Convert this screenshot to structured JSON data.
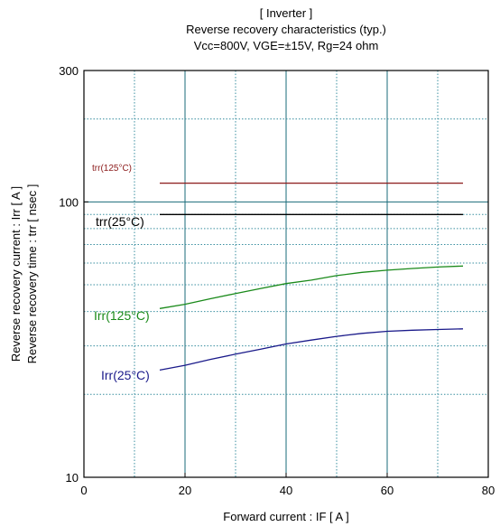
{
  "chart_data": {
    "type": "line",
    "title_lines": [
      "[ Inverter ]",
      "Reverse recovery characteristics  (typ.)",
      "Vcc=800V, VGE=±15V, Rg=24 ohm"
    ],
    "xlabel": "Forward current  :  IF  [ A ]",
    "ylabel_lines": [
      "Reverse recovery current  :  Irr  [ A ]",
      "Reverse recovery time  :  trr  [ nsec ]"
    ],
    "xlim": [
      0,
      80
    ],
    "ylim": [
      10,
      300
    ],
    "yscale": "log",
    "x_ticks": [
      0,
      20,
      40,
      60,
      80
    ],
    "x_tick_labels": [
      "0",
      "20",
      "40",
      "60",
      "80"
    ],
    "y_ticks": [
      10,
      100,
      300
    ],
    "y_tick_labels": [
      "10",
      "100",
      "300"
    ],
    "grid": true,
    "series": [
      {
        "name": "trr(125°C)",
        "color": "#8b1a1a",
        "x": [
          15,
          25,
          35,
          45,
          55,
          65,
          75
        ],
        "y": [
          117,
          117,
          117,
          117,
          117,
          117,
          117
        ]
      },
      {
        "name": "trr(25°C)",
        "color": "#000000",
        "x": [
          15,
          25,
          35,
          45,
          55,
          65,
          75
        ],
        "y": [
          90,
          90,
          90,
          90,
          90,
          90,
          90
        ]
      },
      {
        "name": "Irr(125°C)",
        "color": "#1a8a1a",
        "x": [
          15,
          20,
          25,
          30,
          35,
          40,
          45,
          50,
          55,
          60,
          65,
          70,
          75
        ],
        "y": [
          41,
          42.5,
          44.5,
          46.5,
          48.5,
          50.5,
          52,
          54,
          55.5,
          56.5,
          57.3,
          58,
          58.5
        ]
      },
      {
        "name": "Irr(25°C)",
        "color": "#1a1a8a",
        "x": [
          15,
          20,
          25,
          30,
          35,
          40,
          45,
          50,
          55,
          60,
          65,
          70,
          75
        ],
        "y": [
          24.5,
          25.5,
          26.8,
          28,
          29.2,
          30.5,
          31.5,
          32.5,
          33.3,
          33.9,
          34.2,
          34.4,
          34.6
        ]
      }
    ]
  }
}
